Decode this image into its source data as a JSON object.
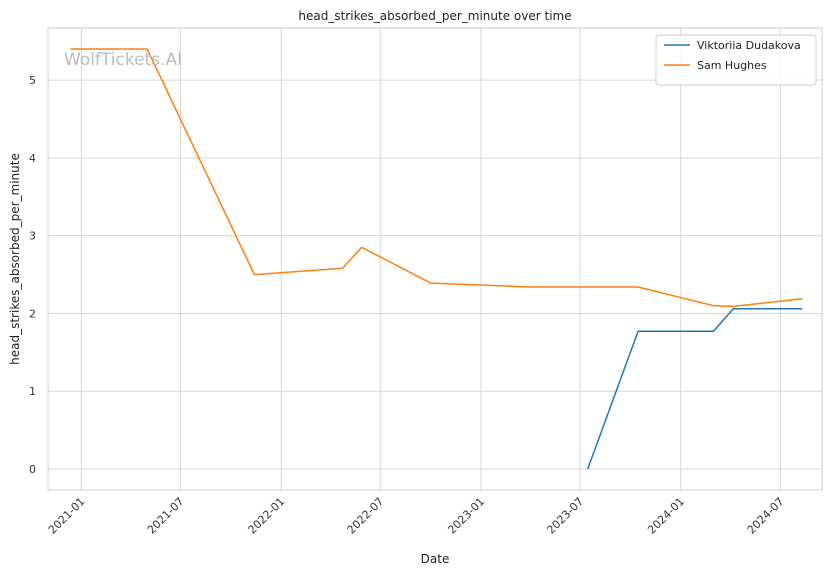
{
  "chart_data": {
    "type": "line",
    "title": "head_strikes_absorbed_per_minute over time",
    "xlabel": "Date",
    "ylabel": "head_strikes_absorbed_per_minute",
    "watermark": "WolfTickets.AI",
    "x_ticks": [
      "2021-01",
      "2021-07",
      "2022-01",
      "2022-07",
      "2023-01",
      "2023-07",
      "2024-01",
      "2024-07"
    ],
    "x_tick_dates": [
      "2021-01-01",
      "2021-07-01",
      "2022-01-01",
      "2022-07-01",
      "2023-01-01",
      "2023-07-01",
      "2024-01-01",
      "2024-07-01"
    ],
    "xlim": [
      "2020-11-01",
      "2024-09-15"
    ],
    "y_ticks": [
      0,
      1,
      2,
      3,
      4,
      5
    ],
    "ylim": [
      -0.27,
      5.67
    ],
    "grid": true,
    "legend_position": "top-right",
    "series": [
      {
        "name": "Viktoriia Dudakova",
        "color": "#1f77b4",
        "points": [
          {
            "x": "2023-07-15",
            "y": 0.0
          },
          {
            "x": "2023-10-15",
            "y": 1.77
          },
          {
            "x": "2024-03-01",
            "y": 1.77
          },
          {
            "x": "2024-04-06",
            "y": 2.06
          },
          {
            "x": "2024-08-10",
            "y": 2.06
          }
        ]
      },
      {
        "name": "Sam Hughes",
        "color": "#ff7f0e",
        "points": [
          {
            "x": "2020-12-12",
            "y": 5.4
          },
          {
            "x": "2021-05-01",
            "y": 5.4
          },
          {
            "x": "2021-11-13",
            "y": 2.5
          },
          {
            "x": "2022-04-23",
            "y": 2.58
          },
          {
            "x": "2022-05-28",
            "y": 2.85
          },
          {
            "x": "2022-10-01",
            "y": 2.39
          },
          {
            "x": "2023-04-01",
            "y": 2.34
          },
          {
            "x": "2023-10-15",
            "y": 2.34
          },
          {
            "x": "2024-03-01",
            "y": 2.1
          },
          {
            "x": "2024-04-06",
            "y": 2.09
          },
          {
            "x": "2024-08-10",
            "y": 2.19
          }
        ]
      }
    ]
  }
}
